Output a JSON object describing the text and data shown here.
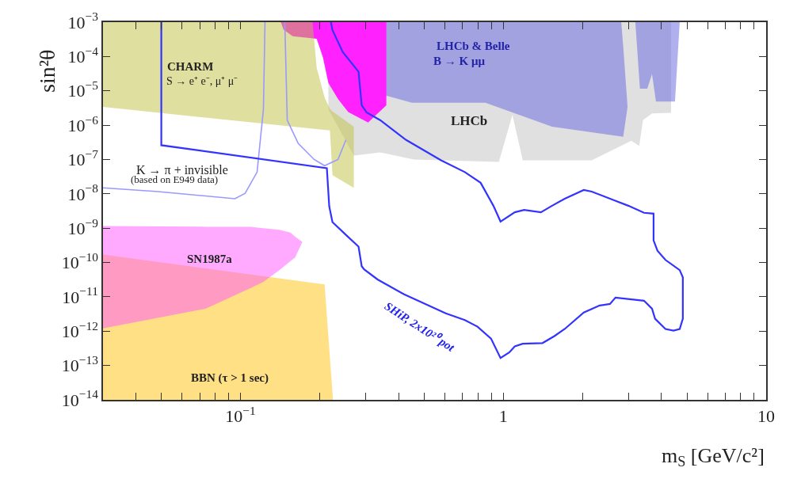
{
  "chart_data": {
    "type": "area",
    "xlabel": "m$_{S}$ [GeV/c²]",
    "ylabel": "sin²θ",
    "log": "xy",
    "xlim": [
      0.03,
      10
    ],
    "ylim": [
      1e-14,
      0.001
    ],
    "xticks": [
      {
        "value": 0.04,
        "label": null
      },
      {
        "value": 0.05,
        "label": null
      },
      {
        "value": 0.06,
        "label": null
      },
      {
        "value": 0.07,
        "label": null
      },
      {
        "value": 0.08,
        "label": null
      },
      {
        "value": 0.09,
        "label": null
      },
      {
        "value": 0.1,
        "label": "10$^{−1}$"
      },
      {
        "value": 0.2,
        "label": null
      },
      {
        "value": 0.3,
        "label": null
      },
      {
        "value": 0.4,
        "label": null
      },
      {
        "value": 0.5,
        "label": null
      },
      {
        "value": 0.6,
        "label": null
      },
      {
        "value": 0.7,
        "label": null
      },
      {
        "value": 0.8,
        "label": null
      },
      {
        "value": 0.9,
        "label": null
      },
      1,
      {
        "value": 2,
        "label": null
      },
      {
        "value": 3,
        "label": null
      },
      {
        "value": 4,
        "label": null
      },
      {
        "value": 5,
        "label": null
      },
      {
        "value": 6,
        "label": null
      },
      {
        "value": 7,
        "label": null
      },
      {
        "value": 8,
        "label": null
      },
      {
        "value": 9,
        "label": null
      },
      10
    ],
    "yticks": [
      {
        "value": 1e-14,
        "label": "10$^{−14}$"
      },
      {
        "value": 1e-13,
        "label": "10$^{−13}$"
      },
      {
        "value": 1e-12,
        "label": "10$^{−12}$"
      },
      {
        "value": 1e-11,
        "label": "10$^{−11}$"
      },
      {
        "value": 1e-10,
        "label": "10$^{−10}$"
      },
      {
        "value": 1e-09,
        "label": "10$^{−9}$"
      },
      {
        "value": 1e-08,
        "label": "10$^{−8}$"
      },
      {
        "value": 1e-07,
        "label": "10$^{−7}$"
      },
      {
        "value": 1e-06,
        "label": "10$^{−6}$"
      },
      {
        "value": 1e-05,
        "label": "10$^{−5}$"
      },
      {
        "value": 0.0001,
        "label": "10$^{−4}$"
      },
      {
        "value": 0.001,
        "label": "10$^{−3}$"
      }
    ],
    "series": [
      {
        "color": "#e0e0e0",
        "x": [
          0.216,
          4.35,
          4.35,
          3.68,
          3.4,
          3.29,
          3.07,
          2.17,
          1.186,
          1.083,
          0.962,
          0.458,
          0.34,
          0.27,
          0.216
        ],
        "values": [
          0.001,
          0.001,
          2.3e-06,
          2.2e-06,
          1.4e-06,
          2.5e-07,
          3.5e-07,
          9.5e-08,
          9.5e-08,
          2e-06,
          8.5e-08,
          1e-07,
          1.6e-07,
          1.3e-07,
          2.9e-06
        ]
      },
      {
        "color": "#7070e0",
        "x": [
          0.356,
          2.81,
          2.86,
          2.97,
          2.86,
          1.533,
          0.855,
          0.449,
          0.356
        ],
        "values": [
          0.001,
          0.001,
          0.00019,
          3.4e-06,
          4.6e-07,
          9e-07,
          4.5e-06,
          4.5e-06,
          7.4e-06
        ]
      },
      {
        "color": "#7070e0",
        "x": [
          3.18,
          4.69,
          4.5,
          3.81,
          3.68,
          3.53,
          3.31
        ],
        "values": [
          0.001,
          0.001,
          4.9e-06,
          4.9e-06,
          3.1e-05,
          1.15e-05,
          1.15e-05
        ]
      },
      {
        "color": "#ff22ff",
        "x": [
          0.1425,
          0.359,
          0.359,
          0.306,
          0.257,
          0.235,
          0.216,
          0.206,
          0.195,
          0.158,
          0.146
        ],
        "values": [
          0.001,
          0.001,
          3.8e-06,
          1.2e-06,
          2.4e-06,
          5.8e-06,
          1.7e-05,
          9.4e-05,
          0.00033,
          0.00039,
          0.0006
        ]
      },
      {
        "color": "#c0c040",
        "x": [
          0.03,
          0.188,
          0.195,
          0.209,
          0.219,
          0.224,
          0.27,
          0.27,
          0.224,
          0.219,
          0.03
        ],
        "values": [
          0.001,
          0.001,
          4.7e-05,
          6.4e-06,
          3e-06,
          2.5e-06,
          9e-07,
          1.5e-08,
          3.5e-08,
          7e-07,
          3.4e-06
        ]
      },
      {
        "color": "#ffcc33",
        "x": [
          0.03,
          0.209,
          0.225,
          0.03
        ],
        "values": [
          1.7e-10,
          2.3e-11,
          1e-14,
          1e-14
        ]
      },
      {
        "color": "#ff55ff",
        "x": [
          0.03,
          0.0736,
          0.1094,
          0.122,
          0.1406,
          0.155,
          0.1615,
          0.172,
          0.1615,
          0.155,
          0.1406,
          0.122,
          0.1094,
          0.0736,
          0.03
        ],
        "values": [
          1.15e-09,
          1.1e-09,
          1.1e-09,
          1e-09,
          9e-10,
          7.4e-10,
          5.6e-10,
          4e-10,
          1.4e-10,
          1.1e-10,
          6e-11,
          2.7e-11,
          1.8e-11,
          4.5e-12,
          1.2e-12
        ]
      },
      {
        "type": "line",
        "color": "#9999ff",
        "x": [
          0.03,
          0.0486,
          0.0953,
          0.1042,
          0.1157,
          0.1223,
          0.124
        ],
        "values": [
          1.5e-08,
          1.16e-08,
          7.2e-09,
          1.04e-08,
          4.3e-08,
          2.9e-06,
          0.001
        ]
      },
      {
        "type": "line",
        "color": "#9999ff",
        "x": [
          0.1475,
          0.1507,
          0.166,
          0.1908,
          0.209,
          0.235,
          0.2519
        ],
        "values": [
          0.001,
          1.4e-06,
          2.9e-07,
          1e-07,
          6.6e-08,
          1e-07,
          3.7e-07
        ]
      },
      {
        "type": "line",
        "color": "#3333ff",
        "x": [
          0.05,
          0.05,
          0.2132,
          0.2177,
          0.2239,
          0.2519,
          0.2814,
          0.2893,
          0.2954,
          0.3325,
          0.418,
          0.604,
          0.714,
          0.798,
          0.898,
          0.976,
          1.053,
          1.106,
          1.186,
          1.41,
          1.565,
          1.713,
          2.024,
          2.326,
          2.545,
          2.672,
          3.43,
          3.68,
          3.78,
          4.14,
          4.44,
          4.69,
          4.82,
          4.82,
          4.69,
          4.14,
          3.86,
          3.73,
          3.73,
          3.43,
          2.99,
          2.17,
          2.024,
          1.713,
          1.533,
          1.39,
          1.2,
          1.106,
          0.976,
          0.917,
          0.82,
          0.714,
          0.58,
          0.427,
          0.34,
          0.302,
          0.2893,
          0.2814,
          0.245,
          0.2239,
          0.221
        ],
        "values": [
          0.001,
          2.6e-07,
          5.6e-08,
          4.3e-09,
          1.5e-09,
          6.4e-10,
          2.9e-10,
          7.8e-11,
          6.3e-11,
          3.2e-11,
          1.2e-11,
          3.3e-12,
          2.1e-12,
          1.35e-12,
          6.1e-13,
          1.65e-13,
          2.4e-13,
          3.6e-13,
          4.3e-13,
          4.5e-13,
          7.2e-13,
          1.16e-12,
          3.5e-12,
          5.6e-12,
          6.2e-12,
          9.5e-12,
          7.7e-12,
          4.5e-12,
          2.3e-12,
          1.16e-12,
          1.04e-12,
          1.16e-12,
          2.3e-12,
          3.7e-11,
          6e-11,
          1.19e-10,
          2.2e-10,
          4.4e-10,
          2.65e-09,
          2.8e-09,
          4.5e-09,
          1.16e-08,
          1.3e-08,
          7.2e-09,
          4.5e-09,
          2.9e-09,
          3.4e-09,
          2.9e-09,
          1.56e-09,
          4.5e-09,
          2.1e-08,
          4.3e-08,
          9.5e-08,
          3.7e-07,
          1.4e-06,
          2.35e-06,
          3.8e-06,
          3.6e-05,
          0.000135,
          0.00059,
          0.001
        ]
      }
    ],
    "annotations": [
      "CHARM",
      "S → e⁺ e⁻, μ⁺ μ⁻",
      "LHCb & Belle",
      "B → K μμ",
      "LHCb",
      "K → π + invisible",
      "(based on E949 data)",
      "SN1987a",
      "BBN (τ > 1 sec)",
      "SHiP, 2x10²⁰ pot"
    ]
  }
}
